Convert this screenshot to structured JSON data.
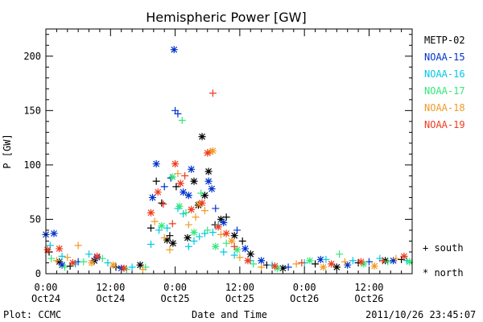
{
  "chart_data": {
    "type": "scatter",
    "title": "Hemispheric Power [GW]",
    "ylabel": "P [GW]",
    "xlabel": "Date and Time",
    "ylim": [
      0,
      225
    ],
    "xlim_hours": [
      0,
      68
    ],
    "y_ticks": [
      0,
      50,
      100,
      150,
      200
    ],
    "x_ticks": [
      {
        "h": 0,
        "line1": "0:00",
        "line2": "Oct24"
      },
      {
        "h": 12,
        "line1": "12:00",
        "line2": "Oct24"
      },
      {
        "h": 24,
        "line1": "0:00",
        "line2": "Oct25"
      },
      {
        "h": 36,
        "line1": "12:00",
        "line2": "Oct25"
      },
      {
        "h": 48,
        "line1": "0:00",
        "line2": "Oct26"
      },
      {
        "h": 60,
        "line1": "12:00",
        "line2": "Oct26"
      }
    ],
    "markers": {
      "south": "+",
      "north": "*"
    },
    "series": [
      {
        "name": "METP-02",
        "color": "#000000",
        "points": [
          {
            "h": 0.6,
            "v": 20,
            "m": "+"
          },
          {
            "h": 2.5,
            "v": 11,
            "m": "*"
          },
          {
            "h": 4.5,
            "v": 7,
            "m": "+"
          },
          {
            "h": 9.0,
            "v": 12,
            "m": "*"
          },
          {
            "h": 13.0,
            "v": 6,
            "m": "+"
          },
          {
            "h": 17.5,
            "v": 8,
            "m": "*"
          },
          {
            "h": 19.5,
            "v": 42,
            "m": "+"
          },
          {
            "h": 20.5,
            "v": 85,
            "m": "+"
          },
          {
            "h": 21.5,
            "v": 65,
            "m": "+"
          },
          {
            "h": 22.5,
            "v": 31,
            "m": "*"
          },
          {
            "h": 23.0,
            "v": 35,
            "m": "+"
          },
          {
            "h": 23.6,
            "v": 28,
            "m": "*"
          },
          {
            "h": 24.2,
            "v": 80,
            "m": "+"
          },
          {
            "h": 26.3,
            "v": 33,
            "m": "*"
          },
          {
            "h": 27.5,
            "v": 85,
            "m": "*"
          },
          {
            "h": 28.3,
            "v": 63,
            "m": "*"
          },
          {
            "h": 29.0,
            "v": 126,
            "m": "*"
          },
          {
            "h": 29.5,
            "v": 72,
            "m": "*"
          },
          {
            "h": 30.2,
            "v": 94,
            "m": "*"
          },
          {
            "h": 31.4,
            "v": 45,
            "m": "+"
          },
          {
            "h": 32.5,
            "v": 50,
            "m": "*"
          },
          {
            "h": 33.5,
            "v": 52,
            "m": "+"
          },
          {
            "h": 35.0,
            "v": 35,
            "m": "*"
          },
          {
            "h": 36.5,
            "v": 30,
            "m": "+"
          },
          {
            "h": 38.0,
            "v": 18,
            "m": "*"
          },
          {
            "h": 41.0,
            "v": 8,
            "m": "+"
          },
          {
            "h": 44.0,
            "v": 5,
            "m": "*"
          },
          {
            "h": 50.0,
            "v": 9,
            "m": "+"
          },
          {
            "h": 54.0,
            "v": 6,
            "m": "*"
          },
          {
            "h": 58.0,
            "v": 10,
            "m": "+"
          },
          {
            "h": 63.0,
            "v": 12,
            "m": "*"
          },
          {
            "h": 66.0,
            "v": 13,
            "m": "+"
          }
        ]
      },
      {
        "name": "NOAA-15",
        "color": "#0033cc",
        "points": [
          {
            "h": 0.0,
            "v": 36,
            "m": "*"
          },
          {
            "h": 1.5,
            "v": 37,
            "m": "*"
          },
          {
            "h": 3.0,
            "v": 8,
            "m": "*"
          },
          {
            "h": 6.0,
            "v": 11,
            "m": "+"
          },
          {
            "h": 9.5,
            "v": 15,
            "m": "*"
          },
          {
            "h": 14.0,
            "v": 5,
            "m": "*"
          },
          {
            "h": 19.8,
            "v": 70,
            "m": "*"
          },
          {
            "h": 20.5,
            "v": 101,
            "m": "*"
          },
          {
            "h": 22.0,
            "v": 80,
            "m": "+"
          },
          {
            "h": 23.2,
            "v": 88,
            "m": "+"
          },
          {
            "h": 23.8,
            "v": 206,
            "m": "*"
          },
          {
            "h": 24.0,
            "v": 150,
            "m": "+"
          },
          {
            "h": 24.5,
            "v": 147,
            "m": "+"
          },
          {
            "h": 25.5,
            "v": 75,
            "m": "*"
          },
          {
            "h": 26.5,
            "v": 72,
            "m": "*"
          },
          {
            "h": 27.0,
            "v": 96,
            "m": "*"
          },
          {
            "h": 30.2,
            "v": 85,
            "m": "*"
          },
          {
            "h": 30.8,
            "v": 78,
            "m": "*"
          },
          {
            "h": 31.5,
            "v": 60,
            "m": "+"
          },
          {
            "h": 33.0,
            "v": 47,
            "m": "*"
          },
          {
            "h": 35.5,
            "v": 40,
            "m": "+"
          },
          {
            "h": 37.0,
            "v": 23,
            "m": "*"
          },
          {
            "h": 40.0,
            "v": 12,
            "m": "*"
          },
          {
            "h": 45.0,
            "v": 6,
            "m": "+"
          },
          {
            "h": 51.0,
            "v": 13,
            "m": "*"
          },
          {
            "h": 56.0,
            "v": 8,
            "m": "*"
          },
          {
            "h": 60.0,
            "v": 11,
            "m": "+"
          },
          {
            "h": 64.5,
            "v": 12,
            "m": "*"
          }
        ]
      },
      {
        "name": "NOAA-16",
        "color": "#00c8e8",
        "points": [
          {
            "h": 0.8,
            "v": 26,
            "m": "+"
          },
          {
            "h": 3.0,
            "v": 16,
            "m": "+"
          },
          {
            "h": 5.5,
            "v": 9,
            "m": "+"
          },
          {
            "h": 8.0,
            "v": 18,
            "m": "+"
          },
          {
            "h": 11.5,
            "v": 10,
            "m": "+"
          },
          {
            "h": 16.0,
            "v": 6,
            "m": "+"
          },
          {
            "h": 19.5,
            "v": 27,
            "m": "+"
          },
          {
            "h": 21.0,
            "v": 40,
            "m": "+"
          },
          {
            "h": 22.5,
            "v": 42,
            "m": "+"
          },
          {
            "h": 24.5,
            "v": 60,
            "m": "+"
          },
          {
            "h": 25.5,
            "v": 55,
            "m": "+"
          },
          {
            "h": 26.5,
            "v": 25,
            "m": "+"
          },
          {
            "h": 27.5,
            "v": 30,
            "m": "+"
          },
          {
            "h": 28.5,
            "v": 34,
            "m": "+"
          },
          {
            "h": 29.5,
            "v": 37,
            "m": "+"
          },
          {
            "h": 31.0,
            "v": 38,
            "m": "+"
          },
          {
            "h": 32.0,
            "v": 45,
            "m": "+"
          },
          {
            "h": 33.0,
            "v": 20,
            "m": "+"
          },
          {
            "h": 35.0,
            "v": 17,
            "m": "+"
          },
          {
            "h": 38.0,
            "v": 12,
            "m": "+"
          },
          {
            "h": 42.0,
            "v": 8,
            "m": "+"
          },
          {
            "h": 48.0,
            "v": 10,
            "m": "+"
          },
          {
            "h": 52.0,
            "v": 13,
            "m": "+"
          },
          {
            "h": 57.0,
            "v": 12,
            "m": "+"
          },
          {
            "h": 62.0,
            "v": 14,
            "m": "+"
          },
          {
            "h": 67.0,
            "v": 12,
            "m": "+"
          }
        ]
      },
      {
        "name": "NOAA-17",
        "color": "#33e87a",
        "points": [
          {
            "h": 1.0,
            "v": 14,
            "m": "+"
          },
          {
            "h": 3.5,
            "v": 6,
            "m": "+"
          },
          {
            "h": 7.0,
            "v": 11,
            "m": "+"
          },
          {
            "h": 10.5,
            "v": 14,
            "m": "+"
          },
          {
            "h": 15.0,
            "v": 4,
            "m": "+"
          },
          {
            "h": 18.5,
            "v": 6,
            "m": "+"
          },
          {
            "h": 21.5,
            "v": 44,
            "m": "*"
          },
          {
            "h": 23.5,
            "v": 89,
            "m": "*"
          },
          {
            "h": 24.8,
            "v": 62,
            "m": "*"
          },
          {
            "h": 25.3,
            "v": 141,
            "m": "+"
          },
          {
            "h": 26.0,
            "v": 56,
            "m": "+"
          },
          {
            "h": 27.5,
            "v": 38,
            "m": "*"
          },
          {
            "h": 28.8,
            "v": 74,
            "m": "+"
          },
          {
            "h": 30.0,
            "v": 40,
            "m": "+"
          },
          {
            "h": 31.5,
            "v": 25,
            "m": "*"
          },
          {
            "h": 33.5,
            "v": 28,
            "m": "+"
          },
          {
            "h": 35.5,
            "v": 22,
            "m": "*"
          },
          {
            "h": 38.5,
            "v": 9,
            "m": "+"
          },
          {
            "h": 43.0,
            "v": 5,
            "m": "*"
          },
          {
            "h": 49.0,
            "v": 12,
            "m": "*"
          },
          {
            "h": 54.5,
            "v": 18,
            "m": "+"
          },
          {
            "h": 59.0,
            "v": 9,
            "m": "*"
          },
          {
            "h": 63.5,
            "v": 11,
            "m": "+"
          },
          {
            "h": 67.5,
            "v": 11,
            "m": "*"
          }
        ]
      },
      {
        "name": "NOAA-18",
        "color": "#f09a28",
        "points": [
          {
            "h": 2.0,
            "v": 12,
            "m": "+"
          },
          {
            "h": 4.0,
            "v": 15,
            "m": "+"
          },
          {
            "h": 6.0,
            "v": 26,
            "m": "+"
          },
          {
            "h": 8.5,
            "v": 10,
            "m": "*"
          },
          {
            "h": 12.5,
            "v": 8,
            "m": "*"
          },
          {
            "h": 18.0,
            "v": 4,
            "m": "+"
          },
          {
            "h": 20.2,
            "v": 48,
            "m": "+"
          },
          {
            "h": 22.0,
            "v": 33,
            "m": "+"
          },
          {
            "h": 23.0,
            "v": 22,
            "m": "+"
          },
          {
            "h": 24.5,
            "v": 92,
            "m": "+"
          },
          {
            "h": 26.5,
            "v": 45,
            "m": "+"
          },
          {
            "h": 27.8,
            "v": 52,
            "m": "+"
          },
          {
            "h": 28.5,
            "v": 64,
            "m": "*"
          },
          {
            "h": 29.5,
            "v": 58,
            "m": "+"
          },
          {
            "h": 30.5,
            "v": 112,
            "m": "*"
          },
          {
            "h": 31.0,
            "v": 113,
            "m": "*"
          },
          {
            "h": 32.5,
            "v": 36,
            "m": "+"
          },
          {
            "h": 34.5,
            "v": 30,
            "m": "*"
          },
          {
            "h": 36.0,
            "v": 15,
            "m": "+"
          },
          {
            "h": 40.0,
            "v": 6,
            "m": "+"
          },
          {
            "h": 46.5,
            "v": 9,
            "m": "+"
          },
          {
            "h": 51.5,
            "v": 6,
            "m": "*"
          },
          {
            "h": 55.5,
            "v": 11,
            "m": "+"
          },
          {
            "h": 61.0,
            "v": 7,
            "m": "*"
          },
          {
            "h": 65.0,
            "v": 14,
            "m": "+"
          }
        ]
      },
      {
        "name": "NOAA-19",
        "color": "#f03a1c",
        "points": [
          {
            "h": 0.3,
            "v": 22,
            "m": "*"
          },
          {
            "h": 2.5,
            "v": 23,
            "m": "*"
          },
          {
            "h": 5.0,
            "v": 10,
            "m": "*"
          },
          {
            "h": 9.5,
            "v": 16,
            "m": "*"
          },
          {
            "h": 14.5,
            "v": 5,
            "m": "*"
          },
          {
            "h": 19.5,
            "v": 56,
            "m": "*"
          },
          {
            "h": 20.8,
            "v": 75,
            "m": "*"
          },
          {
            "h": 21.8,
            "v": 64,
            "m": "+"
          },
          {
            "h": 23.5,
            "v": 46,
            "m": "+"
          },
          {
            "h": 24.0,
            "v": 101,
            "m": "*"
          },
          {
            "h": 25.0,
            "v": 83,
            "m": "*"
          },
          {
            "h": 25.8,
            "v": 90,
            "m": "+"
          },
          {
            "h": 27.0,
            "v": 59,
            "m": "*"
          },
          {
            "h": 29.0,
            "v": 65,
            "m": "*"
          },
          {
            "h": 30.0,
            "v": 111,
            "m": "*"
          },
          {
            "h": 31.0,
            "v": 166,
            "m": "+"
          },
          {
            "h": 32.0,
            "v": 43,
            "m": "*"
          },
          {
            "h": 33.5,
            "v": 37,
            "m": "*"
          },
          {
            "h": 35.0,
            "v": 25,
            "m": "+"
          },
          {
            "h": 37.5,
            "v": 12,
            "m": "*"
          },
          {
            "h": 42.5,
            "v": 7,
            "m": "*"
          },
          {
            "h": 47.5,
            "v": 10,
            "m": "+"
          },
          {
            "h": 53.0,
            "v": 9,
            "m": "*"
          },
          {
            "h": 58.5,
            "v": 11,
            "m": "*"
          },
          {
            "h": 62.5,
            "v": 12,
            "m": "+"
          },
          {
            "h": 66.5,
            "v": 16,
            "m": "*"
          }
        ]
      }
    ]
  },
  "legend": {
    "south_label": "+ south",
    "north_label": "* north"
  },
  "footer": {
    "plot_credit": "Plot: CCMC",
    "timestamp": "2011/10/26 23:45:07"
  }
}
